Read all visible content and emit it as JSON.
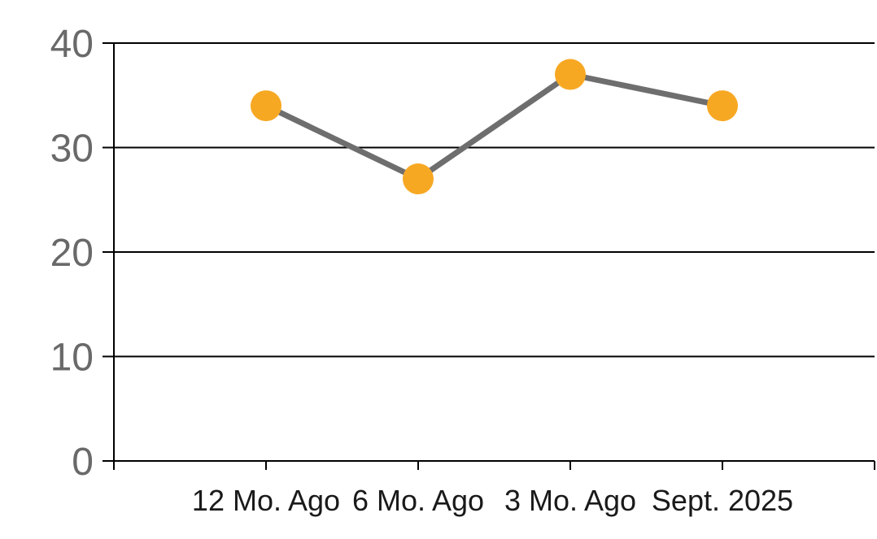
{
  "chart_data": {
    "type": "line",
    "categories": [
      "12 Mo. Ago",
      "6 Mo. Ago",
      "3 Mo. Ago",
      "Sept. 2025"
    ],
    "series": [
      {
        "name": "series-1",
        "values": [
          34,
          27,
          37,
          34
        ]
      }
    ],
    "title": "",
    "xlabel": "",
    "ylabel": "",
    "ylim": [
      0,
      40
    ],
    "y_ticks": [
      0,
      10,
      20,
      30,
      40
    ],
    "grid": "horizontal-on",
    "legend": "none",
    "marker_shape": "circle"
  },
  "colors": {
    "marker": "#F7A823",
    "line": "#6E6E6E",
    "axis": "#000000",
    "gridline": "#000000",
    "y_tick_label": "#696969",
    "x_tick_label": "#1A1A1A",
    "background": "#FFFFFF"
  }
}
